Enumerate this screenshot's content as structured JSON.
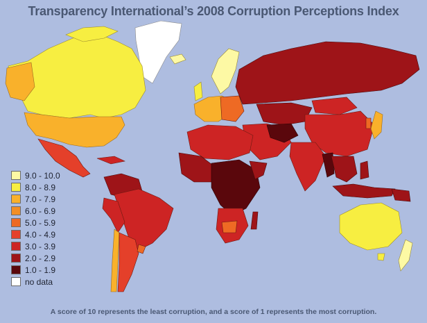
{
  "title": "Transparency International’s 2008 Corruption Perceptions Index",
  "footnote": "A score of 10 represents the least corruption, and a score of 1 represents the most corruption.",
  "colors": {
    "ocean": "#aebde0",
    "title_text": "#4a5873",
    "border": "#5a2a1a"
  },
  "legend": [
    {
      "label": "9.0 - 10.0",
      "color": "#fdf9a4"
    },
    {
      "label": "8.0 - 8.9",
      "color": "#f7ee41"
    },
    {
      "label": "7.0 - 7.9",
      "color": "#f9b12b"
    },
    {
      "label": "6.0 - 6.9",
      "color": "#f28e25"
    },
    {
      "label": "5.0 - 5.9",
      "color": "#ee6a24"
    },
    {
      "label": "4.0 - 4.9",
      "color": "#e4402a"
    },
    {
      "label": "3.0 - 3.9",
      "color": "#cd2424"
    },
    {
      "label": "2.0 - 2.9",
      "color": "#9e1418"
    },
    {
      "label": "1.0 - 1.9",
      "color": "#5a070c"
    },
    {
      "label": "no data",
      "color": "#ffffff"
    }
  ]
}
